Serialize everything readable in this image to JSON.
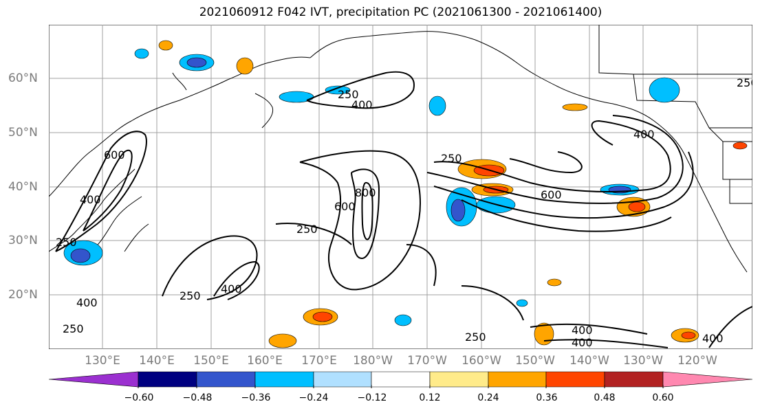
{
  "title": "2021060912 F042 IVT, precipitation PC (2021061300 - 2021061400)",
  "lat_labels": [
    "60°N",
    "50°N",
    "40°N",
    "30°N",
    "20°N"
  ],
  "lon_labels": [
    "130°E",
    "140°E",
    "150°E",
    "160°E",
    "170°E",
    "180°W",
    "170°W",
    "160°W",
    "150°W",
    "140°W",
    "130°W",
    "120°W"
  ],
  "contour_labels": [
    "250",
    "400",
    "600",
    "800"
  ],
  "colorbar": {
    "ticks": [
      "−0.60",
      "−0.48",
      "−0.36",
      "−0.24",
      "−0.12",
      "0.12",
      "0.24",
      "0.36",
      "0.48",
      "0.60"
    ],
    "colors": [
      "#9b30d0",
      "#000080",
      "#3355cc",
      "#00bfff",
      "#b0e0ff",
      "#ffffff",
      "#ffeb8a",
      "#ffa500",
      "#ff4500",
      "#b22222",
      "#ff88b0"
    ]
  }
}
